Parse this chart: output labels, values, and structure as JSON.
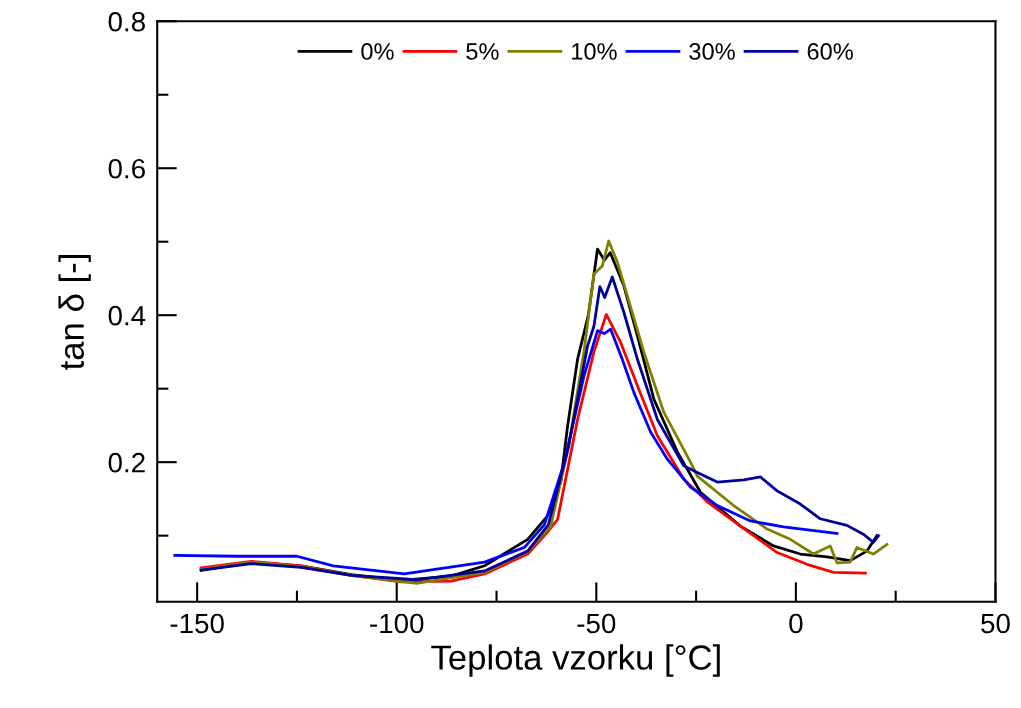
{
  "chart_data": {
    "type": "line",
    "xlabel": "Teplota vzorku [°C]",
    "ylabel": "tan δ [-]",
    "xlim": [
      -160,
      50
    ],
    "ylim": [
      0.01,
      0.8
    ],
    "xticks": [
      -150,
      {
        "value": -125,
        "label": null
      },
      -100,
      {
        "value": -75,
        "label": null
      },
      -50,
      {
        "value": -25,
        "label": null
      },
      0,
      {
        "value": 25,
        "label": null
      },
      50
    ],
    "yticks": [
      {
        "value": 0.1,
        "label": null
      },
      0.2,
      {
        "value": 0.3,
        "label": null
      },
      0.4,
      {
        "value": 0.5,
        "label": null
      },
      0.6,
      {
        "value": 0.7,
        "label": null
      },
      0.8
    ],
    "grid": false,
    "legend": "top",
    "line_style": "solid",
    "marker": "none",
    "series": [
      {
        "name": "0%",
        "color": "#000000",
        "x": [
          -149,
          -136.4,
          -124,
          -111.4,
          -98.9,
          -86.4,
          -78,
          -67.2,
          -62.2,
          -58.9,
          -57.2,
          -54.7,
          -52,
          -49.7,
          -48,
          -46.5,
          -43.1,
          -39.7,
          -35.6,
          -29.7,
          -23.9,
          -13.9,
          -5.6,
          1.1,
          7.8,
          13.6,
          17.8,
          20.3
        ],
        "values": [
          0.053,
          0.064,
          0.059,
          0.047,
          0.039,
          0.045,
          0.059,
          0.095,
          0.127,
          0.173,
          0.249,
          0.34,
          0.4,
          0.49,
          0.475,
          0.485,
          0.44,
          0.372,
          0.286,
          0.214,
          0.159,
          0.113,
          0.086,
          0.075,
          0.071,
          0.066,
          0.079,
          0.1
        ]
      },
      {
        "name": "5%",
        "color": "#ff0000",
        "x": [
          -149,
          -136.4,
          -124,
          -111.4,
          -98.9,
          -86.4,
          -78,
          -67.2,
          -62.2,
          -59.7,
          -54.7,
          -50.6,
          -47.5,
          -43.9,
          -39.7,
          -34.7,
          -28.1,
          -22.2,
          -13.9,
          -4.7,
          2.8,
          9.4,
          17.4
        ],
        "values": [
          0.056,
          0.065,
          0.059,
          0.046,
          0.037,
          0.038,
          0.048,
          0.075,
          0.105,
          0.122,
          0.258,
          0.35,
          0.401,
          0.363,
          0.304,
          0.236,
          0.177,
          0.146,
          0.113,
          0.077,
          0.061,
          0.05,
          0.049
        ]
      },
      {
        "name": "10%",
        "color": "#808000",
        "x": [
          -149,
          -136.4,
          -124,
          -111.4,
          -95,
          -78,
          -67.2,
          -61.4,
          -57,
          -53.1,
          -50.6,
          -48.5,
          -46.9,
          -44.7,
          -42.2,
          -38.1,
          -33.1,
          -26.4,
          -24.7,
          -15.6,
          -7.2,
          -1.4,
          4.4,
          8.6,
          10.3,
          13.6,
          15.3,
          19.4,
          22.8
        ],
        "values": [
          0.054,
          0.064,
          0.058,
          0.046,
          0.035,
          0.05,
          0.078,
          0.113,
          0.22,
          0.35,
          0.456,
          0.467,
          0.501,
          0.472,
          0.426,
          0.35,
          0.268,
          0.2,
          0.181,
          0.141,
          0.109,
          0.095,
          0.075,
          0.086,
          0.063,
          0.064,
          0.084,
          0.075,
          0.088
        ]
      },
      {
        "name": "30%",
        "color": "#0000ff",
        "x": [
          -155.6,
          -140,
          -125,
          -115.9,
          -98.1,
          -78,
          -68,
          -63,
          -58,
          -53.1,
          -49.7,
          -48,
          -46.4,
          -43.5,
          -40.6,
          -36.4,
          -32.2,
          -26.4,
          -19.7,
          -11.4,
          -3.1,
          10.3
        ],
        "values": [
          0.073,
          0.072,
          0.072,
          0.059,
          0.048,
          0.064,
          0.084,
          0.115,
          0.2,
          0.317,
          0.379,
          0.375,
          0.381,
          0.34,
          0.295,
          0.241,
          0.204,
          0.166,
          0.141,
          0.12,
          0.112,
          0.103
        ]
      },
      {
        "name": "60%",
        "color": "#00009c",
        "x": [
          -149,
          -136.4,
          -124,
          -111.4,
          -95,
          -78,
          -67.2,
          -62,
          -57,
          -52.2,
          -50.6,
          -49.1,
          -47.9,
          -46,
          -43.1,
          -39.7,
          -34.7,
          -28.1,
          -24.7,
          -19.7,
          -13,
          -8.9,
          -4.7,
          1.1,
          6.1,
          12.8,
          16.9,
          19.4,
          20.7
        ],
        "values": [
          0.053,
          0.062,
          0.057,
          0.046,
          0.04,
          0.052,
          0.079,
          0.115,
          0.22,
          0.358,
          0.385,
          0.439,
          0.424,
          0.452,
          0.404,
          0.34,
          0.258,
          0.195,
          0.186,
          0.173,
          0.176,
          0.18,
          0.161,
          0.143,
          0.123,
          0.114,
          0.102,
          0.091,
          0.1
        ]
      }
    ]
  }
}
